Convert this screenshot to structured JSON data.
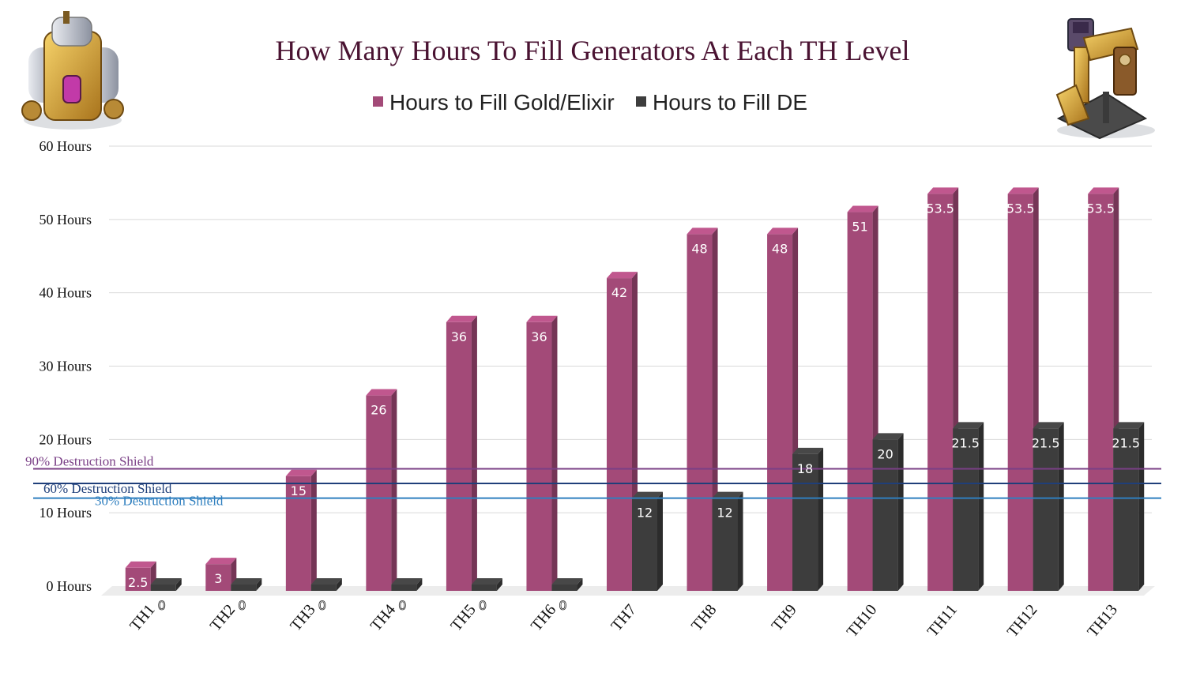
{
  "chart_data": {
    "type": "bar",
    "title": "How Many Hours To Fill Generators At Each TH Level",
    "categories": [
      "TH1",
      "TH2",
      "TH3",
      "TH4",
      "TH5",
      "TH6",
      "TH7",
      "TH8",
      "TH9",
      "TH10",
      "TH11",
      "TH12",
      "TH13"
    ],
    "series": [
      {
        "name": "Hours to Fill Gold/Elixir",
        "color": "#a34a78",
        "values": [
          2.5,
          3,
          15,
          26,
          36,
          36,
          42,
          48,
          48,
          51,
          53.5,
          53.5,
          53.5
        ],
        "labels": [
          "2.5",
          "3",
          "15",
          "26",
          "36",
          "36",
          "42",
          "48",
          "48",
          "51",
          "53.5",
          "53.5",
          "53.5"
        ]
      },
      {
        "name": "Hours to Fill DE",
        "color": "#3d3d3d",
        "values": [
          0,
          0,
          0,
          0,
          0,
          0,
          12,
          12,
          18,
          20,
          21.5,
          21.5,
          21.5
        ],
        "labels": [
          "0",
          "0",
          "0",
          "0",
          "0",
          "0",
          "12",
          "12",
          "18",
          "20",
          "21.5",
          "21.5",
          "21.5"
        ]
      }
    ],
    "ylim": [
      0,
      60
    ],
    "yticks": [
      {
        "value": 0,
        "label": "0 Hours"
      },
      {
        "value": 10,
        "label": "10 Hours"
      },
      {
        "value": 20,
        "label": "20 Hours"
      },
      {
        "value": 30,
        "label": "30 Hours"
      },
      {
        "value": 40,
        "label": "40 Hours"
      },
      {
        "value": 50,
        "label": "50 Hours"
      },
      {
        "value": 60,
        "label": "60 Hours"
      }
    ],
    "grid": true,
    "legend_position": "top-center",
    "reference_lines": [
      {
        "label": "90% Destruction Shield",
        "value": 16,
        "color": "#7a3f86"
      },
      {
        "label": "60% Destruction Shield",
        "value": 14,
        "color": "#1f3f7a"
      },
      {
        "label": "30% Destruction Shield",
        "value": 12,
        "color": "#2f7fbf"
      }
    ]
  },
  "images": {
    "left": "gold-mine-icon",
    "right": "dark-elixir-drill-icon"
  }
}
